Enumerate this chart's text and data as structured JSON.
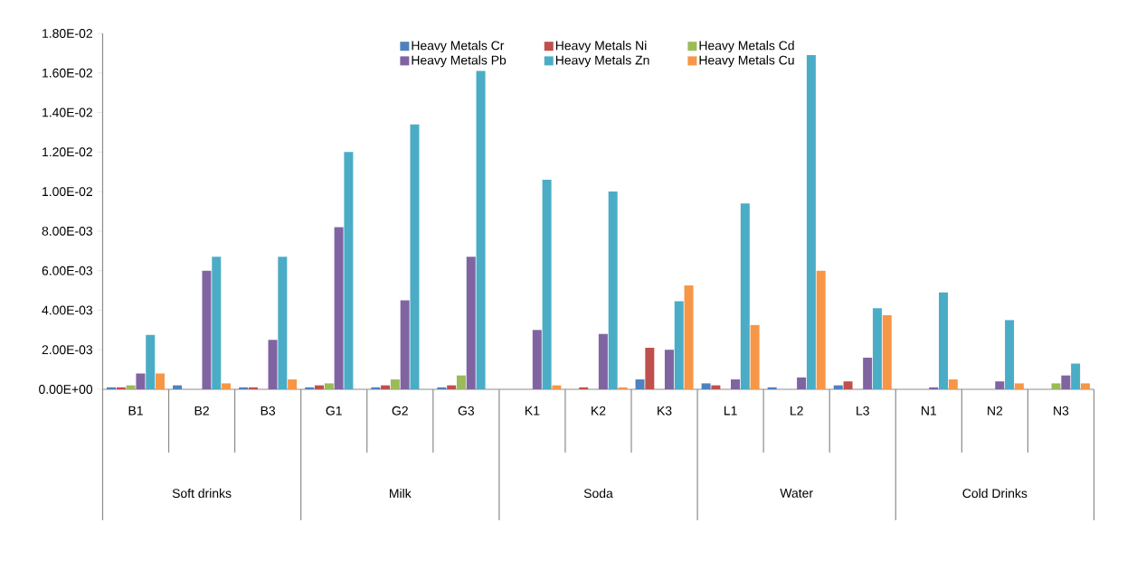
{
  "chart_data": {
    "type": "bar",
    "categories": [
      "B1",
      "B2",
      "B3",
      "G1",
      "G2",
      "G3",
      "K1",
      "K2",
      "K3",
      "L1",
      "L2",
      "L3",
      "N1",
      "N2",
      "N3"
    ],
    "series": [
      {
        "name": "Heavy Metals Cr",
        "color": "#4f81bd",
        "values": [
          0.0001,
          0.0002,
          0.0001,
          0.0001,
          0.0001,
          0.0001,
          null,
          null,
          0.0005,
          0.0003,
          0.0001,
          0.0002,
          null,
          null,
          null
        ]
      },
      {
        "name": "Heavy Metals Ni",
        "color": "#c0504d",
        "values": [
          0.0001,
          null,
          0.0001,
          0.0002,
          0.0002,
          0.0002,
          null,
          0.0001,
          0.0021,
          0.0002,
          null,
          0.0004,
          null,
          null,
          null
        ]
      },
      {
        "name": "Heavy Metals Cd",
        "color": "#9bbb59",
        "values": [
          0.0002,
          null,
          null,
          0.0003,
          0.0005,
          0.0007,
          null,
          null,
          null,
          null,
          null,
          null,
          null,
          null,
          0.0003
        ]
      },
      {
        "name": "Heavy Metals Pb",
        "color": "#8064a2",
        "values": [
          0.0008,
          0.006,
          0.0025,
          0.0082,
          0.0045,
          0.0067,
          0.003,
          0.0028,
          0.002,
          0.0005,
          0.0006,
          0.0016,
          0.0001,
          0.0004,
          0.0007
        ]
      },
      {
        "name": "Heavy Metals Zn",
        "color": "#4bacc6",
        "values": [
          0.00275,
          0.0067,
          0.0067,
          0.012,
          0.0134,
          0.0161,
          0.0106,
          0.01,
          0.00445,
          0.0094,
          0.0169,
          0.0041,
          0.0049,
          0.0035,
          0.0013
        ]
      },
      {
        "name": "Heavy Metals Cu",
        "color": "#f79646",
        "values": [
          0.0008,
          0.0003,
          0.0005,
          null,
          null,
          null,
          0.0002,
          0.0001,
          0.00525,
          0.00325,
          0.006,
          0.00375,
          0.0005,
          0.0003,
          0.0003
        ]
      }
    ],
    "annotations": [
      "Soft drinks",
      "Milk",
      "Soda",
      "Water",
      "Cold Drinks"
    ],
    "ylim": [
      0,
      0.018
    ],
    "yticks": [
      {
        "value": 0,
        "label": "0.00E+00"
      },
      {
        "value": 0.002,
        "label": "2.00E-03"
      },
      {
        "value": 0.004,
        "label": "4.00E-03"
      },
      {
        "value": 0.006,
        "label": "6.00E-03"
      },
      {
        "value": 0.008,
        "label": "8.00E-03"
      },
      {
        "value": 0.01,
        "label": "1.00E-02"
      },
      {
        "value": 0.012,
        "label": "1.20E-02"
      },
      {
        "value": 0.014,
        "label": "1.40E-02"
      },
      {
        "value": 0.016,
        "label": "1.60E-02"
      },
      {
        "value": 0.018,
        "label": "1.80E-02"
      }
    ],
    "grid": false,
    "legend": "top"
  }
}
